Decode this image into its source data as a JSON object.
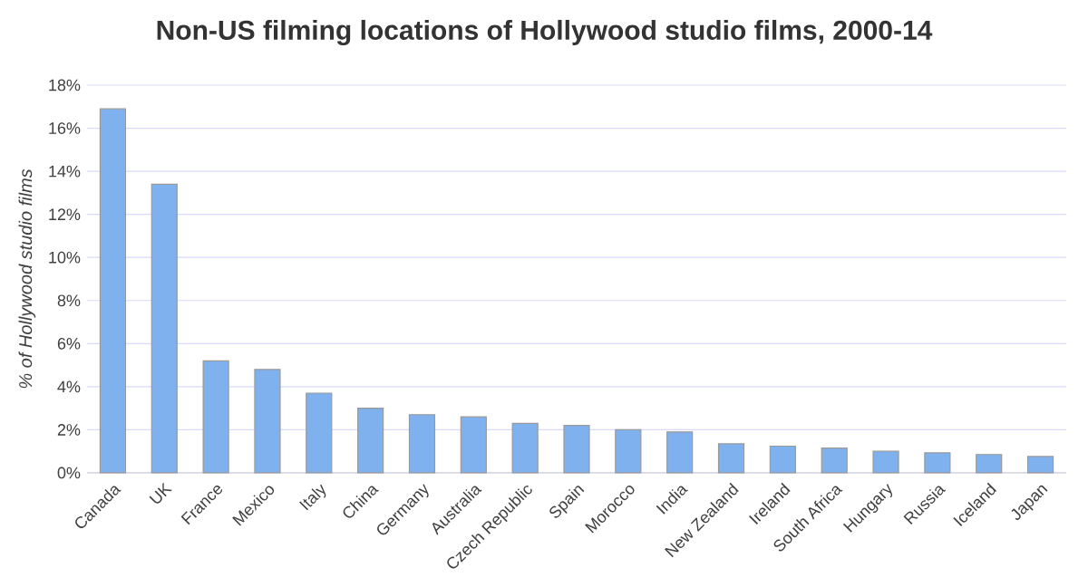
{
  "chart_data": {
    "type": "bar",
    "title": "Non-US filming locations of Hollywood studio films, 2000-14",
    "ylabel": "% of Hollywood studio films",
    "categories": [
      "Canada",
      "UK",
      "France",
      "Mexico",
      "Italy",
      "China",
      "Germany",
      "Australia",
      "Czech Republic",
      "Spain",
      "Morocco",
      "India",
      "New Zealand",
      "Ireland",
      "South Africa",
      "Hungary",
      "Russia",
      "Iceland",
      "Japan"
    ],
    "values": [
      16.9,
      13.4,
      5.2,
      4.8,
      3.7,
      3.0,
      2.7,
      2.6,
      2.3,
      2.2,
      2.0,
      1.9,
      1.35,
      1.24,
      1.15,
      1.0,
      0.93,
      0.85,
      0.76
    ],
    "color": "#7fb1ee",
    "ylim": [
      0,
      18
    ],
    "yticks": [
      {
        "value": 0,
        "label": "0%"
      },
      {
        "value": 2,
        "label": "2%"
      },
      {
        "value": 4,
        "label": "4%"
      },
      {
        "value": 6,
        "label": "6%"
      },
      {
        "value": 8,
        "label": "8%"
      },
      {
        "value": 10,
        "label": "10%"
      },
      {
        "value": 12,
        "label": "12%"
      },
      {
        "value": 14,
        "label": "14%"
      },
      {
        "value": 16,
        "label": "16%"
      },
      {
        "value": 18,
        "label": "18%"
      }
    ],
    "grid": "y"
  }
}
